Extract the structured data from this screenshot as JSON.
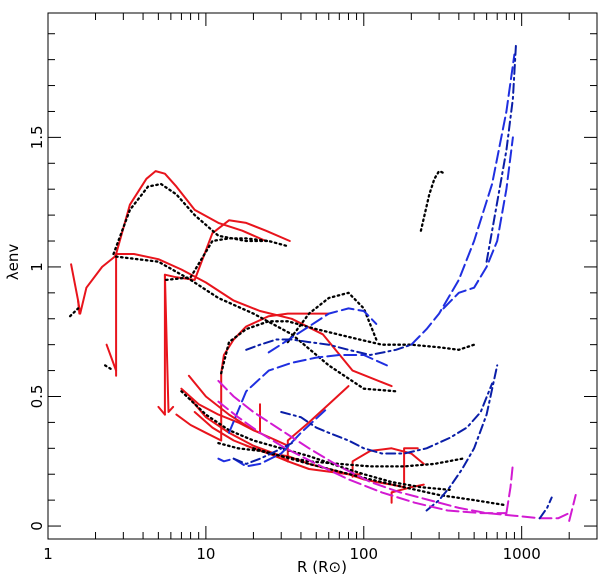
{
  "chart_data": {
    "type": "line",
    "xlabel": "R (R⊙)",
    "ylabel": "λenv",
    "xscale": "log",
    "xlim": [
      1,
      3000
    ],
    "ylim": [
      -0.05,
      1.98
    ],
    "xticks": [
      {
        "value": 1,
        "label": "1"
      },
      {
        "value": 10,
        "label": "10"
      },
      {
        "value": 100,
        "label": "100"
      },
      {
        "value": 1000,
        "label": "1000"
      }
    ],
    "yticks": [
      {
        "value": 0,
        "label": "0"
      },
      {
        "value": 0.5,
        "label": "0.5"
      },
      {
        "value": 1,
        "label": "1"
      },
      {
        "value": 1.5,
        "label": "1.5"
      }
    ],
    "grid": false,
    "legend": "none",
    "series": [
      {
        "style": "solid",
        "color": "#e8141c",
        "x": [
          1.4,
          1.55,
          1.6,
          1.75,
          2.2,
          2.65,
          2.7,
          2.7
        ],
        "y": [
          1.01,
          0.87,
          0.82,
          0.92,
          1.0,
          1.04,
          1.05,
          0.58
        ]
      },
      {
        "style": "solid",
        "color": "#e8141c",
        "x": [
          1.55,
          1.58
        ],
        "y": [
          0.87,
          0.82
        ]
      },
      {
        "style": "solid",
        "color": "#e8141c",
        "x": [
          2.35,
          2.7
        ],
        "y": [
          0.7,
          0.6
        ]
      },
      {
        "style": "solid",
        "color": "#e8141c",
        "x": [
          2.7,
          3.3,
          4.2,
          4.8,
          5.5,
          6.5,
          8.5,
          12,
          17,
          24
        ],
        "y": [
          1.05,
          1.24,
          1.34,
          1.37,
          1.36,
          1.31,
          1.22,
          1.17,
          1.14,
          1.1
        ]
      },
      {
        "style": "solid",
        "color": "#e8141c",
        "x": [
          2.7,
          3.5,
          5,
          7,
          10,
          15,
          22,
          35,
          55,
          85,
          150
        ],
        "y": [
          1.05,
          1.05,
          1.03,
          0.99,
          0.94,
          0.87,
          0.83,
          0.8,
          0.74,
          0.6,
          0.54
        ]
      },
      {
        "style": "solid",
        "color": "#e8141c",
        "x": [
          5.0,
          5.5
        ],
        "y": [
          0.46,
          0.43
        ]
      },
      {
        "style": "solid",
        "color": "#e8141c",
        "x": [
          5.5,
          5.5,
          6.5,
          8.5,
          11,
          14,
          18,
          24,
          34
        ],
        "y": [
          0.43,
          0.97,
          0.96,
          0.95,
          1.13,
          1.18,
          1.17,
          1.14,
          1.1
        ]
      },
      {
        "style": "solid",
        "color": "#e8141c",
        "x": [
          5.5,
          5.8,
          6.2
        ],
        "y": [
          0.97,
          0.44,
          0.46
        ]
      },
      {
        "style": "solid",
        "color": "#e8141c",
        "x": [
          6.5,
          8,
          10,
          12.5,
          12.5
        ],
        "y": [
          0.43,
          0.39,
          0.36,
          0.33,
          0.59
        ]
      },
      {
        "style": "solid",
        "color": "#e8141c",
        "x": [
          7,
          9,
          12,
          16,
          20,
          22,
          22
        ],
        "y": [
          0.53,
          0.47,
          0.43,
          0.4,
          0.37,
          0.36,
          0.47
        ]
      },
      {
        "style": "solid",
        "color": "#e8141c",
        "x": [
          7.8,
          10,
          14,
          20,
          28,
          33
        ],
        "y": [
          0.58,
          0.5,
          0.43,
          0.37,
          0.33,
          0.31
        ]
      },
      {
        "style": "solid",
        "color": "#e8141c",
        "x": [
          8,
          10,
          14,
          20,
          30,
          33
        ],
        "y": [
          0.49,
          0.42,
          0.36,
          0.31,
          0.27,
          0.25
        ]
      },
      {
        "style": "solid",
        "color": "#e8141c",
        "x": [
          8.5,
          11,
          15,
          20,
          25,
          33,
          45,
          60,
          80,
          100,
          120,
          150,
          180,
          180,
          220
        ],
        "y": [
          0.44,
          0.38,
          0.33,
          0.3,
          0.28,
          0.27,
          0.24,
          0.22,
          0.2,
          0.18,
          0.17,
          0.16,
          0.15,
          0.3,
          0.3
        ]
      },
      {
        "style": "solid",
        "color": "#e8141c",
        "x": [
          12.5,
          13,
          15,
          18,
          25,
          33,
          40,
          60
        ],
        "y": [
          0.59,
          0.66,
          0.72,
          0.77,
          0.81,
          0.82,
          0.82,
          0.82
        ]
      },
      {
        "style": "solid",
        "color": "#e8141c",
        "x": [
          18,
          25,
          33,
          45,
          60,
          80,
          95
        ],
        "y": [
          0.31,
          0.28,
          0.25,
          0.22,
          0.21,
          0.2,
          0.2
        ]
      },
      {
        "style": "solid",
        "color": "#e8141c",
        "x": [
          33,
          33,
          45,
          60,
          80
        ],
        "y": [
          0.25,
          0.33,
          0.4,
          0.47,
          0.54
        ]
      },
      {
        "style": "solid",
        "color": "#e8141c",
        "x": [
          85,
          85,
          110,
          150,
          200,
          240
        ],
        "y": [
          0.19,
          0.25,
          0.29,
          0.3,
          0.28,
          0.24
        ]
      },
      {
        "style": "solid",
        "color": "#e8141c",
        "x": [
          150,
          150,
          200,
          240
        ],
        "y": [
          0.09,
          0.13,
          0.15,
          0.16
        ]
      },
      {
        "style": "dotted",
        "color": "#000000",
        "x": [
          1.38,
          1.55
        ],
        "y": [
          0.81,
          0.84
        ]
      },
      {
        "style": "dotted",
        "color": "#000000",
        "x": [
          2.6,
          3.3,
          4.3,
          5.2,
          6.5,
          8.5,
          12,
          18,
          25
        ],
        "y": [
          1.05,
          1.22,
          1.31,
          1.32,
          1.28,
          1.2,
          1.12,
          1.1,
          1.1
        ]
      },
      {
        "style": "dotted",
        "color": "#000000",
        "x": [
          2.7,
          5,
          8,
          12,
          20,
          35,
          60,
          100,
          160
        ],
        "y": [
          1.04,
          1.02,
          0.95,
          0.88,
          0.82,
          0.74,
          0.62,
          0.53,
          0.52
        ]
      },
      {
        "style": "dotted",
        "color": "#000000",
        "x": [
          5.6,
          8,
          11,
          14,
          18,
          25,
          33
        ],
        "y": [
          0.95,
          0.96,
          1.1,
          1.11,
          1.11,
          1.1,
          1.08
        ]
      },
      {
        "style": "dotted",
        "color": "#000000",
        "x": [
          2.3,
          2.6
        ],
        "y": [
          0.62,
          0.6
        ]
      },
      {
        "style": "dotted",
        "color": "#000000",
        "x": [
          12.5,
          14,
          18,
          25,
          33,
          50,
          80,
          130,
          200,
          300,
          400,
          500
        ],
        "y": [
          0.59,
          0.71,
          0.76,
          0.79,
          0.79,
          0.76,
          0.73,
          0.7,
          0.7,
          0.69,
          0.68,
          0.7
        ]
      },
      {
        "style": "dotted",
        "color": "#000000",
        "x": [
          33,
          45,
          60,
          80,
          100,
          120
        ],
        "y": [
          0.71,
          0.82,
          0.88,
          0.9,
          0.84,
          0.72
        ]
      },
      {
        "style": "dotted",
        "color": "#000000",
        "x": [
          7,
          10,
          14,
          20,
          30,
          45,
          70,
          100,
          150,
          230,
          350
        ],
        "y": [
          0.52,
          0.43,
          0.37,
          0.33,
          0.3,
          0.27,
          0.23,
          0.2,
          0.17,
          0.15,
          0.14
        ]
      },
      {
        "style": "dotted",
        "color": "#000000",
        "x": [
          12,
          16,
          22,
          30,
          45,
          70,
          110,
          180,
          280,
          420
        ],
        "y": [
          0.32,
          0.3,
          0.29,
          0.27,
          0.25,
          0.24,
          0.23,
          0.23,
          0.24,
          0.26
        ]
      },
      {
        "style": "dotted",
        "color": "#000000",
        "x": [
          20,
          30,
          45,
          70,
          110,
          180,
          300,
          500,
          800
        ],
        "y": [
          0.3,
          0.27,
          0.24,
          0.21,
          0.18,
          0.15,
          0.12,
          0.1,
          0.08
        ]
      },
      {
        "style": "dotted",
        "color": "#000000",
        "x": [
          230,
          260,
          280,
          300,
          330
        ],
        "y": [
          1.14,
          1.28,
          1.34,
          1.37,
          1.36
        ]
      },
      {
        "style": "dashed",
        "color": "#1f2fe0",
        "x": [
          14,
          18,
          25,
          35,
          50,
          70,
          100,
          140
        ],
        "y": [
          0.36,
          0.52,
          0.6,
          0.63,
          0.65,
          0.66,
          0.66,
          0.62
        ]
      },
      {
        "style": "dashed",
        "color": "#1f2fe0",
        "x": [
          25,
          40,
          60,
          80,
          100,
          120
        ],
        "y": [
          0.67,
          0.75,
          0.82,
          0.84,
          0.83,
          0.78
        ]
      },
      {
        "style": "dashed",
        "color": "#1f2fe0",
        "x": [
          200,
          250,
          300,
          400,
          500,
          650,
          800,
          900
        ],
        "y": [
          0.7,
          0.76,
          0.82,
          0.95,
          1.1,
          1.32,
          1.6,
          1.82
        ]
      },
      {
        "style": "dashed",
        "color": "#1f2fe0",
        "x": [
          320,
          400,
          500,
          600,
          700,
          800,
          880
        ],
        "y": [
          0.84,
          0.9,
          0.92,
          1.0,
          1.1,
          1.3,
          1.5
        ]
      },
      {
        "style": "dashed",
        "color": "#1f2fe0",
        "x": [
          15,
          18,
          22,
          30,
          40,
          60
        ],
        "y": [
          0.26,
          0.23,
          0.24,
          0.28,
          0.36,
          0.46
        ]
      },
      {
        "style": "dashed",
        "color": "#1f2fe0",
        "x": [
          12,
          13,
          15
        ],
        "y": [
          0.26,
          0.25,
          0.26
        ]
      },
      {
        "style": "dashdot",
        "color": "#0a1ea8",
        "x": [
          30,
          40,
          50,
          60,
          80,
          100,
          130,
          180,
          250,
          350,
          450,
          550,
          650
        ],
        "y": [
          0.44,
          0.42,
          0.38,
          0.36,
          0.33,
          0.3,
          0.28,
          0.28,
          0.3,
          0.34,
          0.38,
          0.44,
          0.55
        ]
      },
      {
        "style": "dashdot",
        "color": "#0a1ea8",
        "x": [
          250,
          300,
          350,
          420,
          500,
          600,
          700
        ],
        "y": [
          0.06,
          0.1,
          0.15,
          0.22,
          0.3,
          0.43,
          0.62
        ]
      },
      {
        "style": "dashdot",
        "color": "#0a1ea8",
        "x": [
          18,
          22,
          28,
          35,
          45,
          60,
          80,
          110,
          160,
          200
        ],
        "y": [
          0.68,
          0.7,
          0.72,
          0.72,
          0.71,
          0.7,
          0.68,
          0.66,
          0.68,
          0.7
        ]
      },
      {
        "style": "dashdot",
        "color": "#0a1ea8",
        "x": [
          600,
          700,
          800,
          880,
          920
        ],
        "y": [
          1.02,
          1.25,
          1.45,
          1.65,
          1.86
        ]
      },
      {
        "style": "dashdot",
        "color": "#0a1ea8",
        "x": [
          15,
          18,
          22,
          28,
          35
        ],
        "y": [
          0.26,
          0.24,
          0.26,
          0.29,
          0.32
        ]
      },
      {
        "style": "dashed",
        "color": "#d21ad2",
        "x": [
          12,
          15,
          20,
          30,
          45,
          70,
          110,
          170,
          260,
          400,
          600,
          900,
          1300,
          1700,
          2000
        ],
        "y": [
          0.56,
          0.5,
          0.44,
          0.37,
          0.3,
          0.23,
          0.17,
          0.13,
          0.1,
          0.07,
          0.05,
          0.04,
          0.03,
          0.03,
          0.05
        ]
      },
      {
        "style": "dashed",
        "color": "#d21ad2",
        "x": [
          12,
          16,
          22,
          32,
          50,
          80,
          130,
          210,
          340,
          550,
          800
        ],
        "y": [
          0.48,
          0.42,
          0.36,
          0.3,
          0.24,
          0.18,
          0.13,
          0.09,
          0.06,
          0.05,
          0.05
        ]
      },
      {
        "style": "dashed",
        "color": "#d21ad2",
        "x": [
          800,
          850,
          880
        ],
        "y": [
          0.05,
          0.15,
          0.24
        ]
      },
      {
        "style": "dashed",
        "color": "#d21ad2",
        "x": [
          2000,
          2100,
          2200
        ],
        "y": [
          0.02,
          0.07,
          0.12
        ]
      },
      {
        "style": "dashdot",
        "color": "#0a1ea8",
        "x": [
          1300,
          1450,
          1550
        ],
        "y": [
          0.03,
          0.07,
          0.11
        ]
      }
    ]
  }
}
